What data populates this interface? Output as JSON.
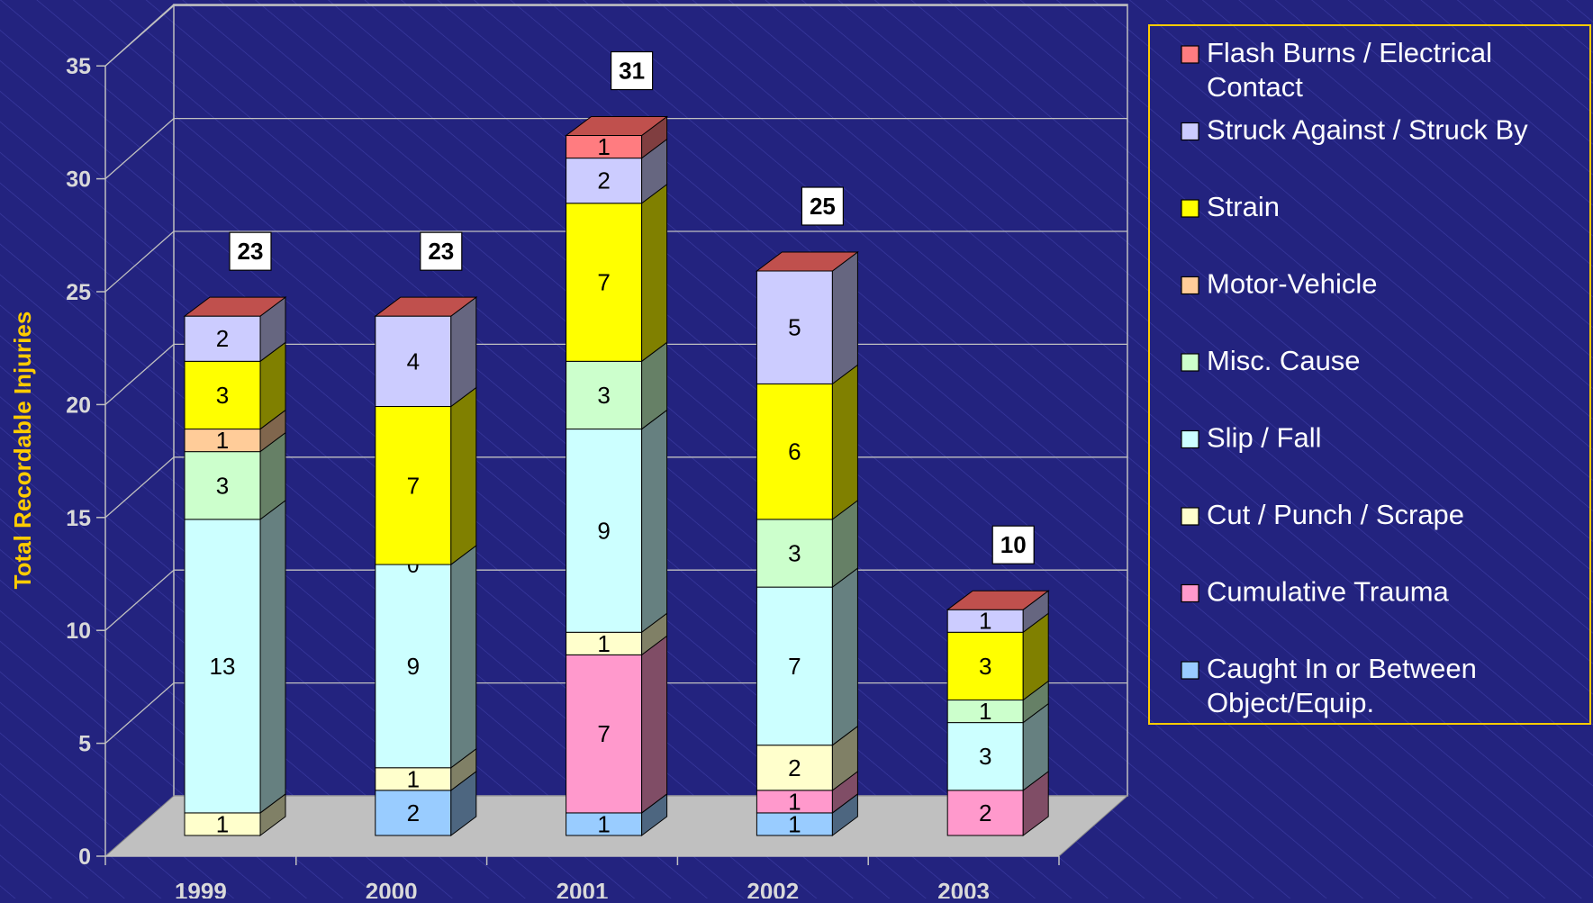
{
  "chart_data": {
    "type": "bar",
    "stacked": true,
    "three_d": true,
    "categories": [
      "1999",
      "2000",
      "2001",
      "2002",
      "2003"
    ],
    "ylabel": "Total Recordable Injuries",
    "xlabel": "",
    "ylim": [
      0,
      35
    ],
    "yticks": [
      "0",
      "5",
      "10",
      "15",
      "20",
      "25",
      "30",
      "35"
    ],
    "totals": [
      "23",
      "23",
      "31",
      "25",
      "10"
    ],
    "grid": true,
    "legend_position": "right",
    "series": [
      {
        "name": "Caught In or Between Object/Equip.",
        "color": "#99ccff",
        "values": [
          0,
          2,
          1,
          1,
          0
        ],
        "labels": [
          "",
          "2",
          "1",
          "1",
          ""
        ]
      },
      {
        "name": "Cumulative Trauma",
        "color": "#ff99cc",
        "values": [
          0,
          0,
          7,
          1,
          2
        ],
        "labels": [
          "",
          "",
          "7",
          "1",
          "2"
        ]
      },
      {
        "name": "Cut / Punch / Scrape",
        "color": "#ffffcc",
        "values": [
          1,
          1,
          1,
          2,
          0
        ],
        "labels": [
          "1",
          "1",
          "1",
          "2",
          ""
        ]
      },
      {
        "name": "Slip / Fall",
        "color": "#ccffff",
        "values": [
          13,
          9,
          9,
          7,
          3
        ],
        "labels": [
          "13",
          "9",
          "9",
          "7",
          "3"
        ]
      },
      {
        "name": "Misc. Cause",
        "color": "#ccffcc",
        "values": [
          3,
          0,
          3,
          3,
          1
        ],
        "labels": [
          "3",
          "0",
          "3",
          "3",
          "1"
        ]
      },
      {
        "name": "Motor-Vehicle",
        "color": "#ffcc99",
        "values": [
          1,
          0,
          0,
          0,
          0
        ],
        "labels": [
          "1",
          "",
          "",
          "",
          ""
        ]
      },
      {
        "name": "Strain",
        "color": "#ffff00",
        "values": [
          3,
          7,
          7,
          6,
          3
        ],
        "labels": [
          "3",
          "7",
          "7",
          "6",
          "3"
        ]
      },
      {
        "name": "Struck Against / Struck By",
        "color": "#ccccff",
        "values": [
          2,
          4,
          2,
          5,
          1
        ],
        "labels": [
          "2",
          "4",
          "2",
          "5",
          "1"
        ]
      },
      {
        "name": "Flash Burns / Electrical Contact",
        "color": "#ff7c80",
        "values": [
          0,
          0,
          1,
          0,
          0
        ],
        "labels": [
          "",
          "",
          "1",
          "",
          ""
        ]
      }
    ],
    "legend": [
      {
        "line1": "Flash Burns / Electrical",
        "line2": "Contact",
        "color": "#ff7c80"
      },
      {
        "line1": "Struck Against / Struck By",
        "line2": "",
        "color": "#ccccff"
      },
      {
        "line1": "Strain",
        "line2": "",
        "color": "#ffff00"
      },
      {
        "line1": "Motor-Vehicle",
        "line2": "",
        "color": "#ffcc99"
      },
      {
        "line1": "Misc. Cause",
        "line2": "",
        "color": "#ccffcc"
      },
      {
        "line1": "Slip / Fall",
        "line2": "",
        "color": "#ccffff"
      },
      {
        "line1": "Cut / Punch / Scrape",
        "line2": "",
        "color": "#ffffcc"
      },
      {
        "line1": "Cumulative Trauma",
        "line2": "",
        "color": "#ff99cc"
      },
      {
        "line1": "Caught In or Between",
        "line2": "Object/Equip.",
        "color": "#99ccff"
      }
    ],
    "colors": {
      "background": "#23237f",
      "axis_text": "#d9d9d9",
      "ylabel": "#ffcc00",
      "floor": "#c0c0c0",
      "grid": "#c0c0c0",
      "legend_border": "#ffcc00"
    }
  }
}
